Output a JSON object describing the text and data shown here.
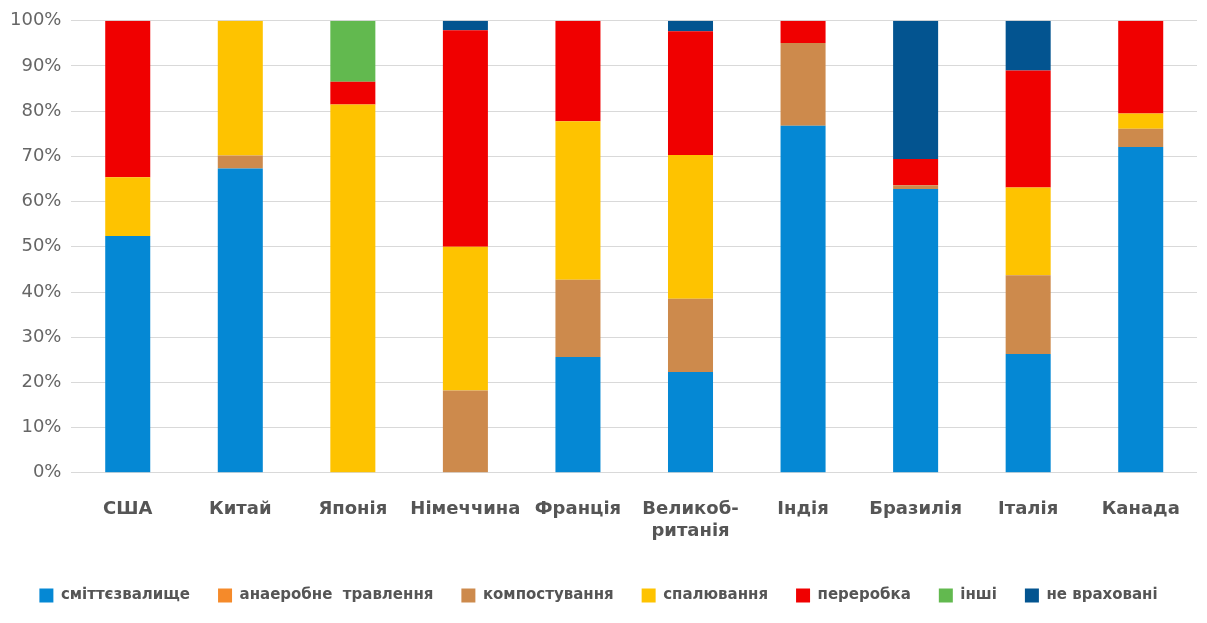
{
  "chart_data": {
    "type": "bar",
    "stacked": true,
    "categories": [
      "США",
      "Китай",
      "Японія",
      "Німеччина",
      "Франція",
      "Великоб-ританія",
      "Індія",
      "Бразилія",
      "Італія",
      "Канада"
    ],
    "series": [
      {
        "name": "сміттєзвалище",
        "color": "#0588d4",
        "values": [
          52.4,
          67.3,
          0,
          0,
          25.6,
          22.3,
          76.8,
          62.8,
          26.3,
          72.1
        ]
      },
      {
        "name": "анаеробне  травлення",
        "color": "#f58a2a",
        "values": [
          0,
          0,
          0,
          0,
          0,
          0,
          0,
          0,
          0,
          0
        ]
      },
      {
        "name": "компостування",
        "color": "#cd8a4c",
        "values": [
          0,
          2.9,
          0,
          18.2,
          17.1,
          16.2,
          18.3,
          0.8,
          17.4,
          4.0
        ]
      },
      {
        "name": "спалювання",
        "color": "#fec300",
        "values": [
          13.0,
          29.8,
          81.5,
          31.8,
          35.1,
          31.8,
          0,
          0,
          19.4,
          3.4
        ]
      },
      {
        "name": "переробка",
        "color": "#f00000",
        "values": [
          34.6,
          0,
          5.0,
          47.9,
          22.2,
          27.4,
          4.9,
          5.8,
          25.9,
          20.5
        ]
      },
      {
        "name": "інші",
        "color": "#62b94f",
        "values": [
          0,
          0,
          13.5,
          0,
          0,
          0,
          0,
          0,
          0,
          0
        ]
      },
      {
        "name": "не враховані",
        "color": "#035490",
        "values": [
          0,
          0,
          0,
          2.1,
          0,
          2.3,
          0,
          30.6,
          11.0,
          0
        ]
      }
    ],
    "ylim": [
      0,
      100
    ],
    "yticks": [
      {
        "value": 0,
        "label": "0%"
      },
      {
        "value": 10,
        "label": "10%"
      },
      {
        "value": 20,
        "label": "20%"
      },
      {
        "value": 30,
        "label": "30%"
      },
      {
        "value": 40,
        "label": "40%"
      },
      {
        "value": 50,
        "label": "50%"
      },
      {
        "value": 60,
        "label": "60%"
      },
      {
        "value": 70,
        "label": "70%"
      },
      {
        "value": 80,
        "label": "80%"
      },
      {
        "value": 90,
        "label": "90%"
      },
      {
        "value": 100,
        "label": "100%"
      }
    ],
    "grid": "y",
    "legend": "bottom"
  }
}
